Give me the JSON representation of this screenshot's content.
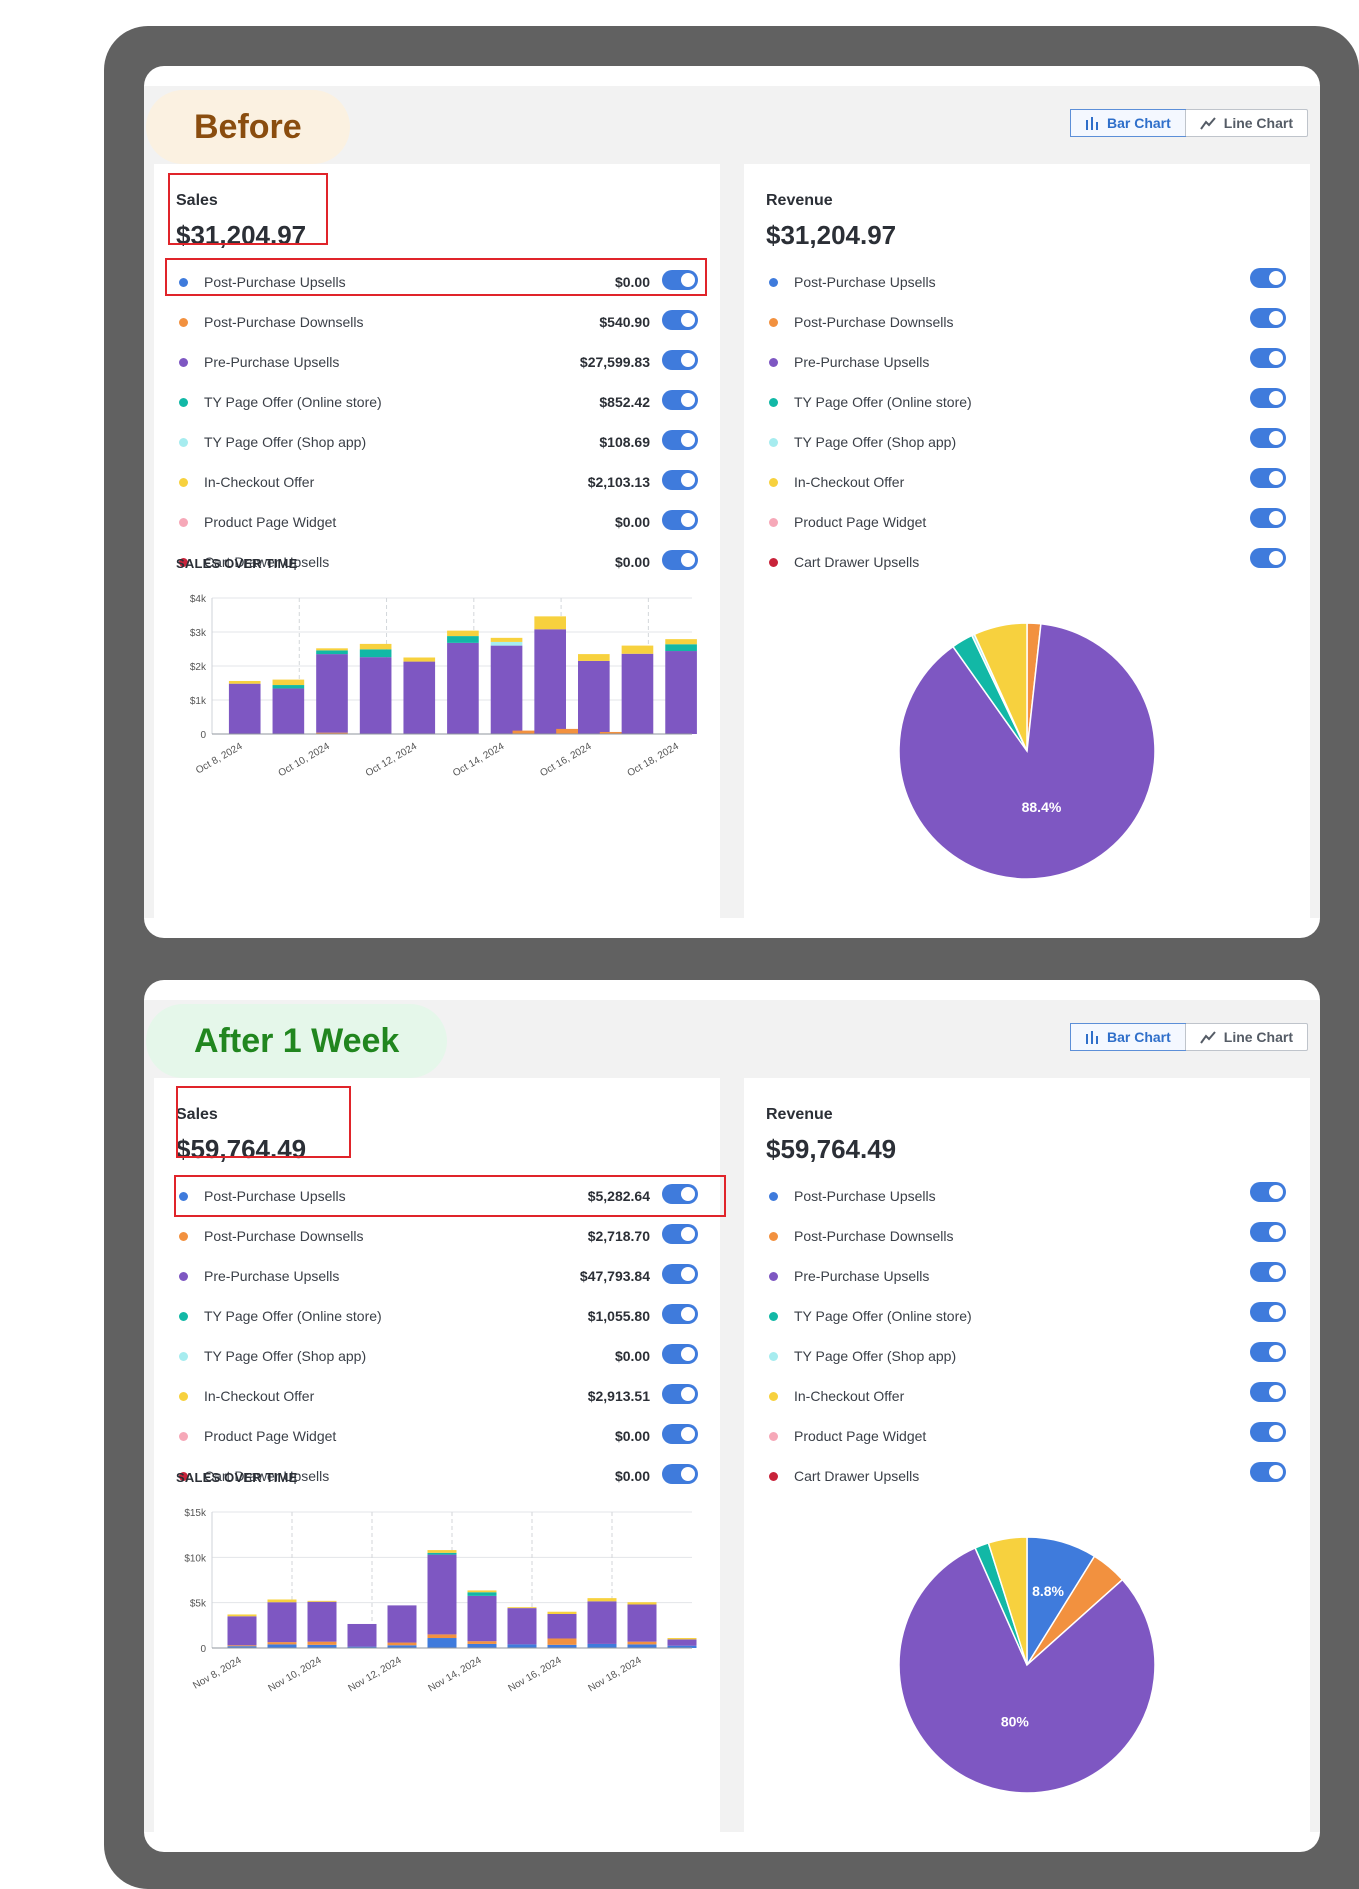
{
  "panels": [
    {
      "badge": "Before",
      "chart_type_toggle": {
        "bar_label": "Bar Chart",
        "line_label": "Line Chart",
        "active": "bar"
      },
      "sales_card": {
        "title": "Sales",
        "total": "$31,204.97",
        "items": [
          {
            "label": "Post-Purchase Upsells",
            "value": "$0.00",
            "color": "#3f7bdc",
            "enabled": true
          },
          {
            "label": "Post-Purchase Downsells",
            "value": "$540.90",
            "color": "#f2913f",
            "enabled": true
          },
          {
            "label": "Pre-Purchase Upsells",
            "value": "$27,599.83",
            "color": "#7e57c2",
            "enabled": true
          },
          {
            "label": "TY Page Offer (Online store)",
            "value": "$852.42",
            "color": "#12b8a6",
            "enabled": true
          },
          {
            "label": "TY Page Offer (Shop app)",
            "value": "$108.69",
            "color": "#a6ecef",
            "enabled": true
          },
          {
            "label": "In-Checkout Offer",
            "value": "$2,103.13",
            "color": "#f7d13e",
            "enabled": true
          },
          {
            "label": "Product Page Widget",
            "value": "$0.00",
            "color": "#f6a8b8",
            "enabled": true
          },
          {
            "label": "Cart Drawer Upsells",
            "value": "$0.00",
            "color": "#c8233a",
            "enabled": true
          }
        ],
        "over_time_title": "SALES OVER TIME"
      },
      "revenue_card": {
        "title": "Revenue",
        "total": "$31,204.97",
        "items": [
          {
            "label": "Post-Purchase Upsells",
            "color": "#3f7bdc",
            "enabled": true
          },
          {
            "label": "Post-Purchase Downsells",
            "color": "#f2913f",
            "enabled": true
          },
          {
            "label": "Pre-Purchase Upsells",
            "color": "#7e57c2",
            "enabled": true
          },
          {
            "label": "TY Page Offer (Online store)",
            "color": "#12b8a6",
            "enabled": true
          },
          {
            "label": "TY Page Offer (Shop app)",
            "color": "#a6ecef",
            "enabled": true
          },
          {
            "label": "In-Checkout Offer",
            "color": "#f7d13e",
            "enabled": true
          },
          {
            "label": "Product Page Widget",
            "color": "#f6a8b8",
            "enabled": true
          },
          {
            "label": "Cart Drawer Upsells",
            "color": "#c8233a",
            "enabled": true
          }
        ]
      },
      "chart_data": [
        {
          "type": "bar",
          "stacked": true,
          "title": "SALES OVER TIME",
          "ylim": [
            0,
            4000
          ],
          "yticks": [
            0,
            1000,
            2000,
            3000,
            4000
          ],
          "ytick_labels": [
            "0",
            "$1k",
            "$2k",
            "$3k",
            "$4k"
          ],
          "xtick_labels": [
            "Oct 8, 2024",
            "Oct 10, 2024",
            "Oct 12, 2024",
            "Oct 14, 2024",
            "Oct 16, 2024",
            "Oct 18, 2024"
          ],
          "series": [
            {
              "name": "Post-Purchase Upsells",
              "color": "#3f7bdc",
              "values": [
                0,
                0,
                0,
                0,
                0,
                0,
                0,
                0,
                0,
                0,
                0,
                0,
                0,
                0,
                0,
                0,
                0,
                0,
                0,
                0,
                0,
                0
              ]
            },
            {
              "name": "Post-Purchase Downsells",
              "color": "#f2913f",
              "values": [
                0,
                0,
                0,
                0,
                0,
                40,
                0,
                0,
                0,
                0,
                0,
                0,
                0,
                0,
                100,
                0,
                150,
                0,
                60,
                0,
                0,
                0
              ]
            },
            {
              "name": "Pre-Purchase Upsells",
              "color": "#7e57c2",
              "values": [
                0,
                1480,
                0,
                1340,
                0,
                2310,
                0,
                2260,
                0,
                2130,
                0,
                2680,
                0,
                2600,
                0,
                3080,
                0,
                2150,
                0,
                2360,
                0,
                2440
              ]
            },
            {
              "name": "TY Page Offer (Online store)",
              "color": "#12b8a6",
              "values": [
                0,
                0,
                0,
                100,
                0,
                110,
                0,
                230,
                0,
                0,
                0,
                200,
                0,
                0,
                0,
                0,
                0,
                0,
                0,
                0,
                0,
                200
              ]
            },
            {
              "name": "TY Page Offer (Shop app)",
              "color": "#a6ecef",
              "values": [
                0,
                0,
                0,
                0,
                0,
                0,
                0,
                0,
                0,
                0,
                0,
                0,
                0,
                108,
                0,
                0,
                0,
                0,
                0,
                0,
                0,
                0
              ]
            },
            {
              "name": "In-Checkout Offer",
              "color": "#f7d13e",
              "values": [
                0,
                80,
                0,
                160,
                0,
                60,
                0,
                160,
                0,
                120,
                0,
                160,
                0,
                120,
                0,
                380,
                0,
                200,
                0,
                240,
                0,
                150
              ]
            }
          ]
        },
        {
          "type": "pie",
          "values": [
            0,
            540.9,
            27599.83,
            852.42,
            108.69,
            2103.13,
            0,
            0
          ],
          "colors": [
            "#3f7bdc",
            "#f2913f",
            "#7e57c2",
            "#12b8a6",
            "#a6ecef",
            "#f7d13e",
            "#f6a8b8",
            "#c8233a"
          ],
          "data_labels": [
            {
              "slice": 2,
              "text": "88.4%"
            }
          ]
        }
      ]
    },
    {
      "badge": "After 1 Week",
      "chart_type_toggle": {
        "bar_label": "Bar Chart",
        "line_label": "Line Chart",
        "active": "bar"
      },
      "sales_card": {
        "title": "Sales",
        "total": "$59,764.49",
        "items": [
          {
            "label": "Post-Purchase Upsells",
            "value": "$5,282.64",
            "color": "#3f7bdc",
            "enabled": true
          },
          {
            "label": "Post-Purchase Downsells",
            "value": "$2,718.70",
            "color": "#f2913f",
            "enabled": true
          },
          {
            "label": "Pre-Purchase Upsells",
            "value": "$47,793.84",
            "color": "#7e57c2",
            "enabled": true
          },
          {
            "label": "TY Page Offer (Online store)",
            "value": "$1,055.80",
            "color": "#12b8a6",
            "enabled": true
          },
          {
            "label": "TY Page Offer (Shop app)",
            "value": "$0.00",
            "color": "#a6ecef",
            "enabled": true
          },
          {
            "label": "In-Checkout Offer",
            "value": "$2,913.51",
            "color": "#f7d13e",
            "enabled": true
          },
          {
            "label": "Product Page Widget",
            "value": "$0.00",
            "color": "#f6a8b8",
            "enabled": true
          },
          {
            "label": "Cart Drawer Upsells",
            "value": "$0.00",
            "color": "#c8233a",
            "enabled": true
          }
        ],
        "over_time_title": "SALES OVER TIME"
      },
      "revenue_card": {
        "title": "Revenue",
        "total": "$59,764.49",
        "items": [
          {
            "label": "Post-Purchase Upsells",
            "color": "#3f7bdc",
            "enabled": true
          },
          {
            "label": "Post-Purchase Downsells",
            "color": "#f2913f",
            "enabled": true
          },
          {
            "label": "Pre-Purchase Upsells",
            "color": "#7e57c2",
            "enabled": true
          },
          {
            "label": "TY Page Offer (Online store)",
            "color": "#12b8a6",
            "enabled": true
          },
          {
            "label": "TY Page Offer (Shop app)",
            "color": "#a6ecef",
            "enabled": true
          },
          {
            "label": "In-Checkout Offer",
            "color": "#f7d13e",
            "enabled": true
          },
          {
            "label": "Product Page Widget",
            "color": "#f6a8b8",
            "enabled": true
          },
          {
            "label": "Cart Drawer Upsells",
            "color": "#c8233a",
            "enabled": true
          }
        ]
      },
      "chart_data": [
        {
          "type": "bar",
          "stacked": true,
          "title": "SALES OVER TIME",
          "ylim": [
            0,
            15000
          ],
          "yticks": [
            0,
            5000,
            10000,
            15000
          ],
          "ytick_labels": [
            "0",
            "$5k",
            "$10k",
            "$15k"
          ],
          "xtick_labels": [
            "Nov 8, 2024",
            "Nov 10, 2024",
            "Nov 12, 2024",
            "Nov 14, 2024",
            "Nov 16, 2024",
            "Nov 18, 2024"
          ],
          "series": [
            {
              "name": "Post-Purchase Upsells",
              "color": "#3f7bdc",
              "values": [
                0,
                200,
                0,
                400,
                0,
                350,
                0,
                150,
                0,
                300,
                0,
                1100,
                0,
                450,
                0,
                400,
                0,
                350,
                0,
                450,
                0,
                400,
                0,
                250
              ]
            },
            {
              "name": "Post-Purchase Downsells",
              "color": "#f2913f",
              "values": [
                0,
                100,
                0,
                250,
                0,
                350,
                0,
                0,
                0,
                300,
                0,
                400,
                0,
                300,
                0,
                0,
                0,
                700,
                0,
                0,
                0,
                300,
                0,
                0
              ]
            },
            {
              "name": "Pre-Purchase Upsells",
              "color": "#7e57c2",
              "values": [
                0,
                3200,
                0,
                4400,
                0,
                4400,
                0,
                2500,
                0,
                4100,
                0,
                8800,
                0,
                5000,
                0,
                4000,
                0,
                2700,
                0,
                4700,
                0,
                4100,
                0,
                700
              ]
            },
            {
              "name": "TY Page Offer (Online store)",
              "color": "#12b8a6",
              "values": [
                0,
                0,
                0,
                0,
                0,
                0,
                0,
                0,
                0,
                0,
                0,
                200,
                0,
                400,
                0,
                0,
                0,
                0,
                0,
                0,
                0,
                0,
                0,
                0
              ]
            },
            {
              "name": "In-Checkout Offer",
              "color": "#f7d13e",
              "values": [
                0,
                200,
                0,
                300,
                0,
                100,
                0,
                0,
                0,
                0,
                0,
                300,
                0,
                200,
                0,
                100,
                0,
                250,
                0,
                350,
                0,
                250,
                0,
                150
              ]
            }
          ]
        },
        {
          "type": "pie",
          "values": [
            5282.64,
            2718.7,
            47793.84,
            1055.8,
            0,
            2913.51,
            0,
            0
          ],
          "colors": [
            "#3f7bdc",
            "#f2913f",
            "#7e57c2",
            "#12b8a6",
            "#a6ecef",
            "#f7d13e",
            "#f6a8b8",
            "#c8233a"
          ],
          "data_labels": [
            {
              "slice": 0,
              "text": "8.8%"
            },
            {
              "slice": 2,
              "text": "80%"
            }
          ]
        }
      ]
    }
  ]
}
